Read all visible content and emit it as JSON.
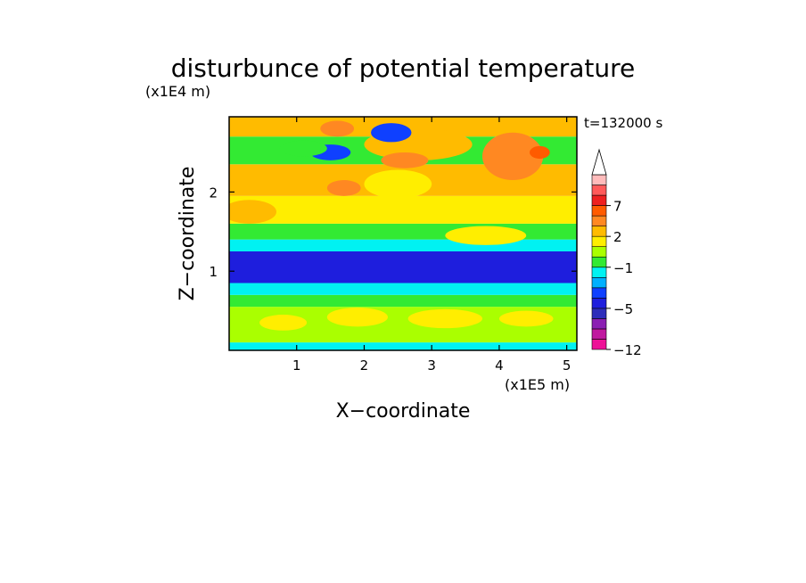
{
  "chart_data": {
    "type": "heatmap",
    "title": "disturbunce of potential temperature",
    "time_label": "t=132000 s",
    "xlabel": "X−coordinate",
    "ylabel": "Z−coordinate",
    "x_unit": "(x1E5 m)",
    "y_unit": "(x1E4 m)",
    "xlim": [
      0,
      5.15
    ],
    "ylim": [
      0,
      2.95
    ],
    "x_ticks": [
      {
        "value": 1,
        "label": "1"
      },
      {
        "value": 2,
        "label": "2"
      },
      {
        "value": 3,
        "label": "3"
      },
      {
        "value": 4,
        "label": "4"
      },
      {
        "value": 5,
        "label": "5"
      }
    ],
    "y_ticks": [
      {
        "value": 1,
        "label": "1"
      },
      {
        "value": 2,
        "label": "2"
      }
    ],
    "colorbar": {
      "levels": [
        -12,
        -11,
        -9,
        -7,
        -5,
        -4,
        -3,
        -2,
        -1,
        0,
        1,
        2,
        3,
        5,
        7,
        9,
        11
      ],
      "colors": [
        "#ee1197",
        "#c0189f",
        "#8b1fb3",
        "#2d2dba",
        "#1e1edd",
        "#0f40ff",
        "#00b0ff",
        "#00f2f2",
        "#33ea33",
        "#aaff00",
        "#ffee00",
        "#ffbb00",
        "#ff8822",
        "#ff5b00",
        "#ee2020",
        "#ff5a5a",
        "#ffbbbb"
      ],
      "tick_labels": [
        {
          "value": -12,
          "label": "−12"
        },
        {
          "value": -5,
          "label": "−5"
        },
        {
          "value": -1,
          "label": "−1"
        },
        {
          "value": 2,
          "label": "2"
        },
        {
          "value": 7,
          "label": "7"
        }
      ],
      "extend": "max"
    },
    "grid": false
  }
}
